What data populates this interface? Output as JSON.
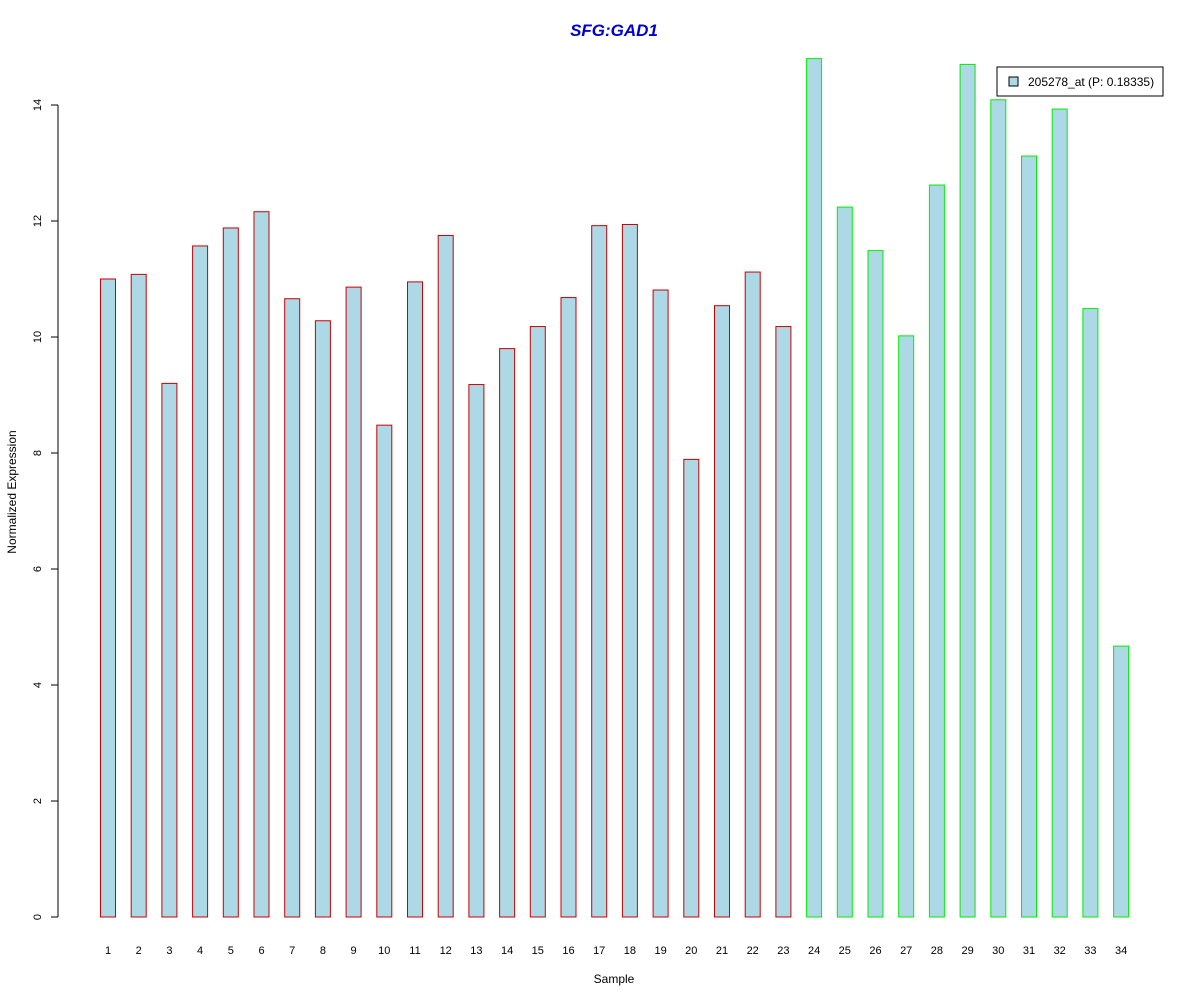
{
  "chart_data": {
    "type": "bar",
    "title": "SFG:GAD1",
    "xlabel": "Sample",
    "ylabel": "Normalized Expression",
    "ylim": [
      0,
      14.8
    ],
    "yticks": [
      "0",
      "2",
      "4",
      "6",
      "8",
      "10",
      "12",
      "14"
    ],
    "categories": [
      "1",
      "2",
      "3",
      "4",
      "5",
      "6",
      "7",
      "8",
      "9",
      "10",
      "11",
      "12",
      "13",
      "14",
      "15",
      "16",
      "17",
      "18",
      "19",
      "20",
      "21",
      "22",
      "23",
      "24",
      "25",
      "26",
      "27",
      "28",
      "29",
      "30",
      "31",
      "32",
      "33",
      "34"
    ],
    "values": [
      11.0,
      11.08,
      9.2,
      11.57,
      11.88,
      12.16,
      10.66,
      10.28,
      10.86,
      8.48,
      10.95,
      11.75,
      9.18,
      9.8,
      10.18,
      10.68,
      11.92,
      11.94,
      10.81,
      7.89,
      10.54,
      11.12,
      10.18,
      14.8,
      12.24,
      11.49,
      10.02,
      12.62,
      14.7,
      14.09,
      13.12,
      13.93,
      10.49,
      4.67
    ],
    "groups": [
      "red",
      "red",
      "red",
      "red",
      "red",
      "red",
      "red",
      "red",
      "red",
      "red",
      "red",
      "red",
      "red",
      "red",
      "red",
      "red",
      "red",
      "red",
      "red",
      "red",
      "red",
      "red",
      "red",
      "green",
      "green",
      "green",
      "green",
      "green",
      "green",
      "green",
      "green",
      "green",
      "green",
      "green"
    ],
    "grid": false,
    "legend": {
      "placement": "top-right",
      "entries": [
        "205278_at (P: 0.18335)"
      ]
    },
    "colors": {
      "bar_fill": "#add8e6",
      "red": "#cc0000",
      "green": "#00ee00",
      "title": "#0000cd"
    }
  }
}
